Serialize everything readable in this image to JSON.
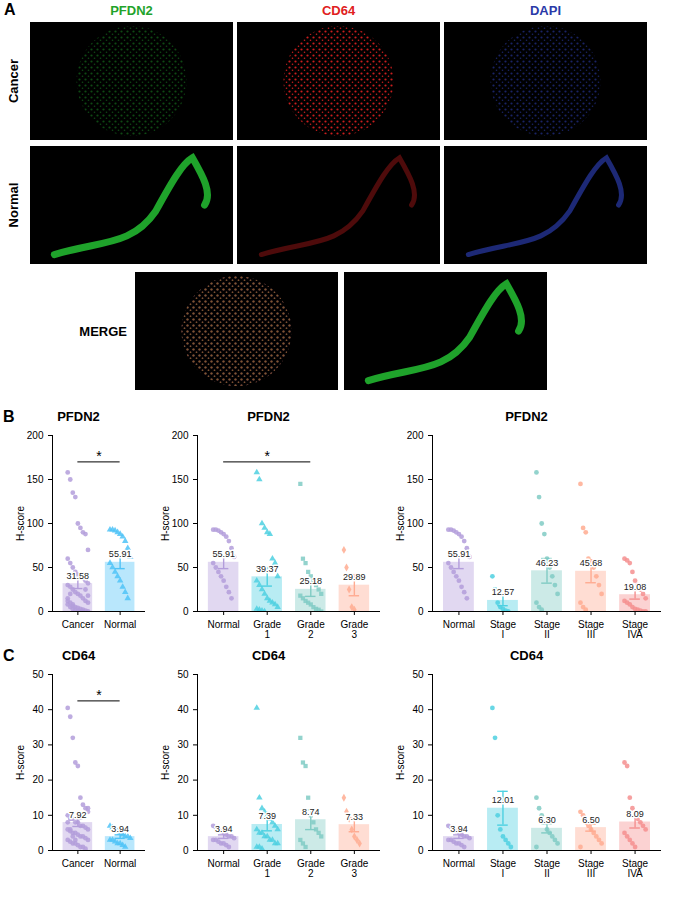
{
  "image_panel": {
    "panel": "A",
    "channels": [
      "PFDN2",
      "CD64",
      "DAPI"
    ],
    "colors": [
      "#1fa32b",
      "#e02020",
      "#2a3aa8"
    ],
    "rows": [
      "Cancer",
      "Normal"
    ],
    "merge_label": "MERGE"
  },
  "chart_data": [
    {
      "type": "bar",
      "panel": "B",
      "title": "PFDN2",
      "y_label": "H-score",
      "categories": [
        "Cancer",
        "Normal"
      ],
      "values": [
        31.58,
        55.91
      ],
      "errors": [
        5.5,
        7.2
      ],
      "colors": [
        "#b39ddb",
        "#4fc3f7"
      ],
      "markers": [
        "circle",
        "triangle"
      ],
      "points": [
        [
          158,
          150,
          135,
          130,
          100,
          95,
          90,
          88,
          70,
          60,
          55,
          50,
          45,
          42,
          40,
          38,
          35,
          32,
          30,
          28,
          25,
          22,
          20,
          18,
          15,
          12,
          10,
          8,
          5,
          3,
          2,
          1,
          0,
          0,
          25,
          18,
          15,
          10,
          8,
          5,
          4,
          3,
          2,
          1,
          0,
          12,
          20,
          6
        ],
        [
          93,
          93,
          92,
          90,
          88,
          85,
          80,
          72,
          62,
          55,
          50,
          45,
          40,
          35,
          28,
          22,
          15
        ]
      ],
      "ylim": [
        0,
        200
      ],
      "yticks": [
        0,
        50,
        100,
        150,
        200
      ],
      "data_labels": true,
      "significance": [
        {
          "from": "Cancer",
          "to": "Normal",
          "label": "*"
        }
      ]
    },
    {
      "type": "bar",
      "title": "PFDN2",
      "y_label": "H-score",
      "categories": [
        "Normal",
        "Grade 1",
        "Grade 2",
        "Grade 3"
      ],
      "values": [
        55.91,
        39.37,
        25.18,
        29.89
      ],
      "errors": [
        7.2,
        10.5,
        8.0,
        12.0
      ],
      "colors": [
        "#b39ddb",
        "#4dd0e1",
        "#80cbc4",
        "#ffab91"
      ],
      "markers": [
        "circle",
        "triangle",
        "square",
        "diamond"
      ],
      "points": [
        [
          93,
          93,
          92,
          90,
          88,
          85,
          80,
          72,
          62,
          55,
          50,
          45,
          40,
          35,
          28,
          22,
          15
        ],
        [
          158,
          150,
          100,
          95,
          90,
          88,
          60,
          55,
          40,
          35,
          30,
          25,
          20,
          15,
          12,
          10,
          8,
          5,
          3,
          2,
          1,
          0
        ],
        [
          145,
          60,
          55,
          45,
          40,
          35,
          30,
          25,
          20,
          18,
          15,
          12,
          10,
          8,
          5,
          3,
          2,
          0
        ],
        [
          70,
          50,
          25,
          5,
          2
        ]
      ],
      "ylim": [
        0,
        200
      ],
      "yticks": [
        0,
        50,
        100,
        150,
        200
      ],
      "data_labels": true,
      "significance": [
        {
          "from": "Normal",
          "to": "Grade 2",
          "label": "*"
        }
      ]
    },
    {
      "type": "bar",
      "title": "PFDN2",
      "y_label": "H-score",
      "categories": [
        "Normal",
        "Stage I",
        "Stage II",
        "Stage III",
        "Stage IVA"
      ],
      "values": [
        55.91,
        12.57,
        46.23,
        45.68,
        19.08
      ],
      "errors": [
        7.2,
        6.0,
        14.0,
        13.0,
        5.0
      ],
      "colors": [
        "#b39ddb",
        "#4dd0e1",
        "#80cbc4",
        "#ffab91",
        "#f48f8f"
      ],
      "markers": [
        "circle",
        "circle",
        "circle",
        "circle",
        "circle"
      ],
      "points": [
        [
          93,
          93,
          92,
          90,
          88,
          85,
          80,
          72,
          62,
          55,
          50,
          45,
          40,
          35,
          28,
          22,
          15
        ],
        [
          40,
          25,
          10,
          5,
          3,
          1,
          0
        ],
        [
          158,
          130,
          100,
          88,
          60,
          50,
          40,
          30,
          20,
          10,
          5,
          2
        ],
        [
          145,
          95,
          90,
          60,
          55,
          50,
          40,
          30,
          20,
          10,
          5,
          2
        ],
        [
          60,
          58,
          55,
          45,
          35,
          30,
          25,
          20,
          15,
          12,
          10,
          8,
          5,
          3,
          2,
          1,
          0,
          0
        ]
      ],
      "ylim": [
        0,
        200
      ],
      "yticks": [
        0,
        50,
        100,
        150,
        200
      ],
      "data_labels": true
    },
    {
      "type": "bar",
      "panel": "C",
      "title": "CD64",
      "y_label": "H-score",
      "categories": [
        "Cancer",
        "Normal"
      ],
      "values": [
        7.92,
        3.94
      ],
      "errors": [
        1.1,
        0.5
      ],
      "colors": [
        "#b39ddb",
        "#4fc3f7"
      ],
      "markers": [
        "circle",
        "triangle"
      ],
      "points": [
        [
          40.5,
          38,
          32,
          25,
          24,
          15,
          13,
          12,
          11,
          10,
          9,
          9,
          8,
          8,
          7,
          7,
          6.5,
          6,
          6,
          5.5,
          5,
          5,
          4.5,
          4,
          4,
          3.5,
          3,
          3,
          2.5,
          2,
          2,
          1.5,
          1,
          1,
          0.5,
          12,
          8,
          6,
          4,
          3
        ],
        [
          7,
          6.5,
          6,
          5.5,
          5,
          4.5,
          4,
          4,
          3.5,
          3,
          3,
          2.5,
          2,
          2,
          1.5,
          1
        ]
      ],
      "ylim": [
        0,
        50
      ],
      "yticks": [
        0,
        10,
        20,
        30,
        40,
        50
      ],
      "data_labels": true,
      "significance": [
        {
          "from": "Cancer",
          "to": "Normal",
          "label": "*"
        }
      ]
    },
    {
      "type": "bar",
      "title": "CD64",
      "y_label": "H-score",
      "categories": [
        "Normal",
        "Grade 1",
        "Grade 2",
        "Grade 3"
      ],
      "values": [
        3.94,
        7.39,
        8.74,
        7.33
      ],
      "errors": [
        0.5,
        1.8,
        2.8,
        2.0
      ],
      "colors": [
        "#b39ddb",
        "#4dd0e1",
        "#80cbc4",
        "#ffab91"
      ],
      "markers": [
        "circle",
        "triangle",
        "square",
        "diamond"
      ],
      "points": [
        [
          7,
          6.5,
          6,
          5.5,
          5,
          4.5,
          4,
          4,
          3.5,
          3,
          3,
          2.5,
          2,
          2,
          1.5,
          1
        ],
        [
          40.5,
          15,
          12,
          11,
          10,
          9,
          8,
          7,
          6,
          6,
          5,
          5,
          4,
          4,
          3,
          3,
          2,
          2,
          1,
          1,
          0.5
        ],
        [
          32,
          25,
          24,
          15,
          10,
          8,
          6,
          5,
          4,
          3,
          2,
          1
        ],
        [
          15,
          11,
          9,
          6,
          4,
          3,
          2
        ]
      ],
      "ylim": [
        0,
        50
      ],
      "yticks": [
        0,
        10,
        20,
        30,
        40,
        50
      ],
      "data_labels": true
    },
    {
      "type": "bar",
      "title": "CD64",
      "y_label": "H-score",
      "categories": [
        "Normal",
        "Stage I",
        "Stage II",
        "Stage III",
        "Stage IVA"
      ],
      "values": [
        3.94,
        12.01,
        6.3,
        6.5,
        8.09
      ],
      "value_labels": [
        "3.94",
        "12.01",
        "6.30",
        "6.50",
        "8.09"
      ],
      "errors": [
        0.5,
        4.8,
        1.3,
        1.0,
        1.7
      ],
      "colors": [
        "#b39ddb",
        "#4dd0e1",
        "#80cbc4",
        "#ffab91",
        "#f48f8f"
      ],
      "markers": [
        "circle",
        "circle",
        "circle",
        "circle",
        "circle"
      ],
      "points": [
        [
          7,
          6.5,
          6,
          5.5,
          5,
          4.5,
          4,
          4,
          3.5,
          3,
          3,
          2.5,
          2,
          2,
          1.5,
          1
        ],
        [
          40.5,
          32,
          10,
          6,
          4,
          3,
          2,
          1
        ],
        [
          15,
          12,
          10,
          8,
          6,
          5,
          4,
          3,
          2,
          1
        ],
        [
          11,
          10,
          8,
          7,
          6,
          5,
          4,
          3,
          2,
          1
        ],
        [
          25,
          24,
          15,
          12,
          10,
          9,
          8,
          7,
          6,
          5,
          4,
          3,
          2,
          1
        ]
      ],
      "ylim": [
        0,
        50
      ],
      "yticks": [
        0,
        10,
        20,
        30,
        40,
        50
      ],
      "data_labels": true
    }
  ]
}
